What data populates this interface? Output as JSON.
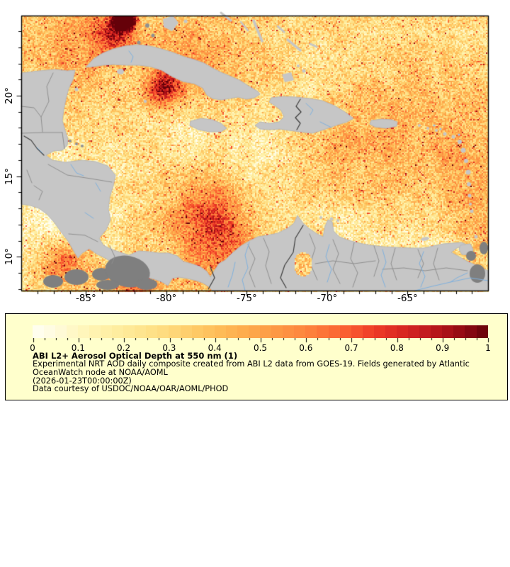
{
  "map": {
    "x_tick_labels": [
      "-85°",
      "-80°",
      "-75°",
      "-70°",
      "-65°"
    ],
    "y_tick_labels": [
      "20°",
      "15°",
      "10°"
    ]
  },
  "legend": {
    "tick_labels": [
      "0",
      "0.1",
      "0.2",
      "0.3",
      "0.4",
      "0.5",
      "0.6",
      "0.7",
      "0.8",
      "0.9",
      "1"
    ],
    "title": "ABI L2+ Aerosol Optical Depth at 550 nm (1)",
    "lines": [
      "Experimental NRT AOD daily composite created from ABI L2 data from GOES-19. Fields generated by Atlantic",
      "OceanWatch node at NOAA/AOML",
      "(2026-01-23T00:00:00Z)",
      "Data courtesy of USDOC/NOAA/OAR/AOML/PHOD"
    ]
  },
  "colors": {
    "legend_background": "#ffffcc",
    "frame": "#000000",
    "land": "#c6c6c6",
    "land_no_data": "#7f7f7f",
    "admin_border": "#8f8f8f",
    "country_border": "#3c3c3c",
    "river": "#7fb1de",
    "palette": [
      [
        0.0,
        "#fffff4"
      ],
      [
        0.05,
        "#fffbdd"
      ],
      [
        0.1,
        "#fff7c0"
      ],
      [
        0.15,
        "#fff2ab"
      ],
      [
        0.2,
        "#feeb9b"
      ],
      [
        0.25,
        "#fee38b"
      ],
      [
        0.3,
        "#fed97c"
      ],
      [
        0.35,
        "#fecc69"
      ],
      [
        0.4,
        "#febf5a"
      ],
      [
        0.45,
        "#feb04f"
      ],
      [
        0.5,
        "#fda348"
      ],
      [
        0.55,
        "#fd9443"
      ],
      [
        0.6,
        "#fd853e"
      ],
      [
        0.65,
        "#fc7036"
      ],
      [
        0.7,
        "#f9592f"
      ],
      [
        0.75,
        "#ee3c26"
      ],
      [
        0.8,
        "#dd2a23"
      ],
      [
        0.85,
        "#c91e20"
      ],
      [
        0.9,
        "#b01218"
      ],
      [
        0.95,
        "#8f0912"
      ],
      [
        1.0,
        "#650109"
      ]
    ]
  },
  "chart_data": {
    "type": "heatmap",
    "title": "ABI L2+ Aerosol Optical Depth at 550 nm (1)",
    "variable": "Aerosol Optical Depth at 550 nm",
    "colorbar": {
      "min": 0,
      "max": 1,
      "ticks": [
        0,
        0.1,
        0.2,
        0.3,
        0.4,
        0.5,
        0.6,
        0.7,
        0.8,
        0.9,
        1
      ]
    },
    "x_axis": {
      "tick_values_deg_lon": [
        -85,
        -80,
        -75,
        -70,
        -65
      ],
      "range_approx": [
        -89.0,
        -60.2
      ]
    },
    "y_axis": {
      "tick_values_deg_lat": [
        20,
        15,
        10
      ],
      "range_approx": [
        7.9,
        25.0
      ]
    },
    "date_shown": "2026-01-23T00:00:00Z",
    "source_text": "ABI L2 data from GOES-19"
  }
}
